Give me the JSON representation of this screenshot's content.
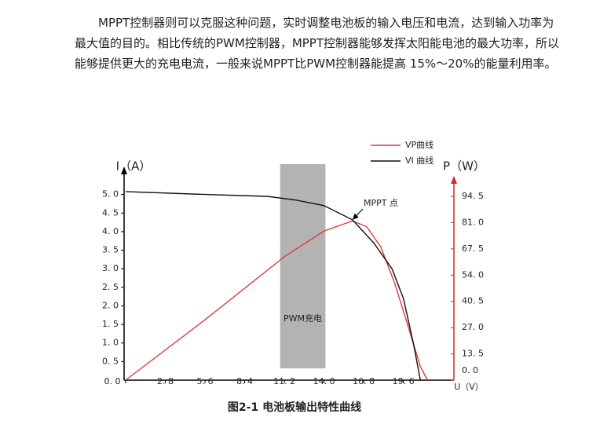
{
  "paragraph": "MPPT控制器则可以克服这种问题，实时调整电池板的输入电压和电流，达到输入功率为最大值的目的。相比传统的PWM控制器，MPPT控制器能够发挥太阳能电池的最大功率，所以能够提供更大的充电电流，一般来说MPPT比PWM控制器能提高 15%～20%的能量利用率。",
  "figure": {
    "caption": "图2-1 电池板输出特性曲线",
    "chart_data": {
      "type": "line",
      "y_label": "I（A）",
      "y2_label": "P（W）",
      "x_label": "U（V）",
      "xlim": [
        0,
        23
      ],
      "xticks": [
        {
          "value": 0,
          "label": "0. 0"
        },
        {
          "value": 2.8,
          "label": "2. 8"
        },
        {
          "value": 5.6,
          "label": "5. 6"
        },
        {
          "value": 8.4,
          "label": "8. 4"
        },
        {
          "value": 11.2,
          "label": "11. 2"
        },
        {
          "value": 14.0,
          "label": "14. 0"
        },
        {
          "value": 16.8,
          "label": "16. 8"
        },
        {
          "value": 19.6,
          "label": "19. 6"
        }
      ],
      "ylim": [
        0,
        5.5
      ],
      "yticks": [
        {
          "value": 0.5,
          "label": "0. 5"
        },
        {
          "value": 1.0,
          "label": "1. 0"
        },
        {
          "value": 1.5,
          "label": "1. 5"
        },
        {
          "value": 2.0,
          "label": "2. 0"
        },
        {
          "value": 2.5,
          "label": "2. 5"
        },
        {
          "value": 3.0,
          "label": "3. 0"
        },
        {
          "value": 3.5,
          "label": "3. 5"
        },
        {
          "value": 4.0,
          "label": "4. 0"
        },
        {
          "value": 4.5,
          "label": "4. 5"
        },
        {
          "value": 5.0,
          "label": "5. 0"
        }
      ],
      "y2lim": [
        0,
        105
      ],
      "y2ticks": [
        {
          "value": 0,
          "label": "0. 0"
        },
        {
          "value": 13.5,
          "label": "13. 5"
        },
        {
          "value": 27.0,
          "label": "27. 0"
        },
        {
          "value": 40.5,
          "label": "40. 5"
        },
        {
          "value": 54.0,
          "label": "54. 0"
        },
        {
          "value": 67.5,
          "label": "67. 5"
        },
        {
          "value": 81.0,
          "label": "81. 0"
        },
        {
          "value": 94.5,
          "label": "94. 5"
        }
      ],
      "y2_color": "#d42a2a",
      "band": {
        "label": "PWM充电",
        "x0": 10.9,
        "x1": 14.1,
        "color": "#b3b3b4"
      },
      "annotation": {
        "text": "MPPT 点",
        "x": 16.0,
        "y": 4.32
      },
      "series": [
        {
          "name": "VP曲线",
          "color": "#e03a3a",
          "axis": "y2",
          "x": [
            0,
            5.6,
            11.2,
            14.0,
            16.0,
            17.0,
            18.0,
            19.0,
            20.0,
            20.8,
            21.3
          ],
          "values": [
            0,
            31,
            63.5,
            76.7,
            81.8,
            79,
            68.6,
            49.6,
            26,
            7,
            0
          ]
        },
        {
          "name": "VI 曲线",
          "color": "#111111",
          "x": [
            0,
            5.6,
            10.0,
            12.0,
            14.0,
            16.0,
            17.5,
            18.8,
            19.6,
            20.3,
            20.8
          ],
          "values": [
            5.08,
            5.0,
            4.95,
            4.85,
            4.7,
            4.32,
            3.7,
            3.0,
            2.2,
            1.0,
            0
          ]
        }
      ]
    }
  }
}
